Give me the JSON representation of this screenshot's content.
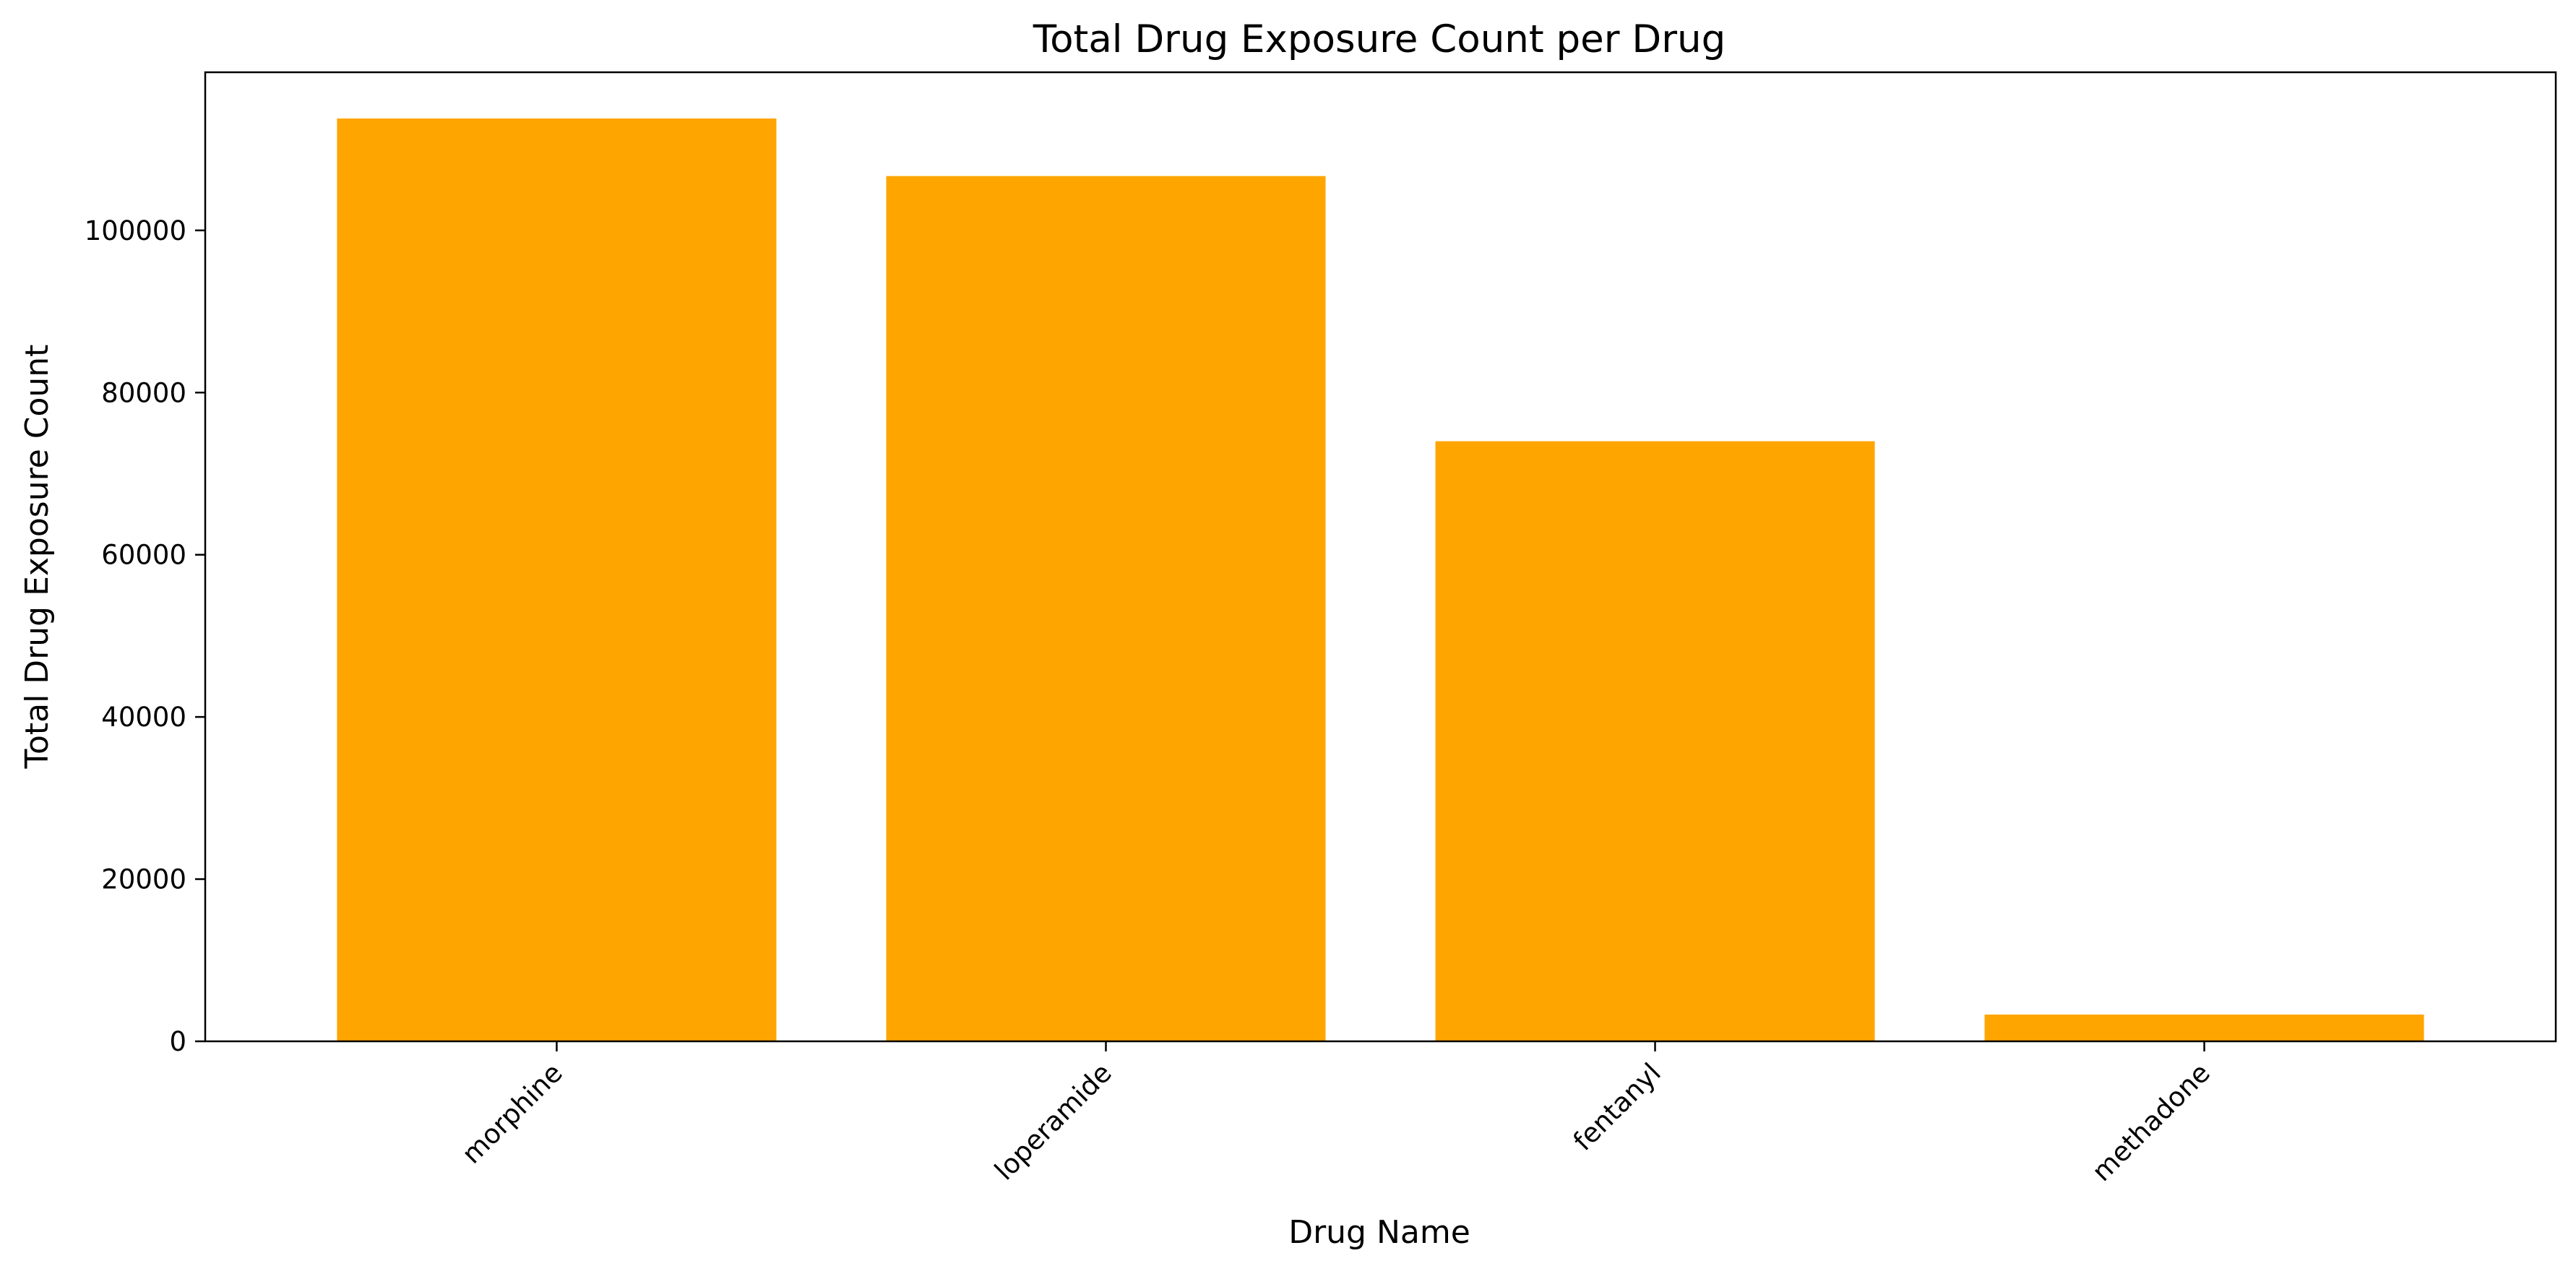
{
  "chart_data": {
    "type": "bar",
    "title": "Total Drug Exposure Count per Drug",
    "xlabel": "Drug Name",
    "ylabel": "Total Drug Exposure Count",
    "categories": [
      "morphine",
      "loperamide",
      "fentanyl",
      "methadone"
    ],
    "values": [
      113800,
      106700,
      74000,
      3300
    ],
    "ylim": [
      0,
      119500
    ],
    "yticks": [
      0,
      20000,
      40000,
      60000,
      80000,
      100000
    ],
    "ytick_labels": [
      "0",
      "20000",
      "40000",
      "60000",
      "80000",
      "100000"
    ],
    "bar_color": "#ffa500",
    "grid": false,
    "legend": "none"
  }
}
